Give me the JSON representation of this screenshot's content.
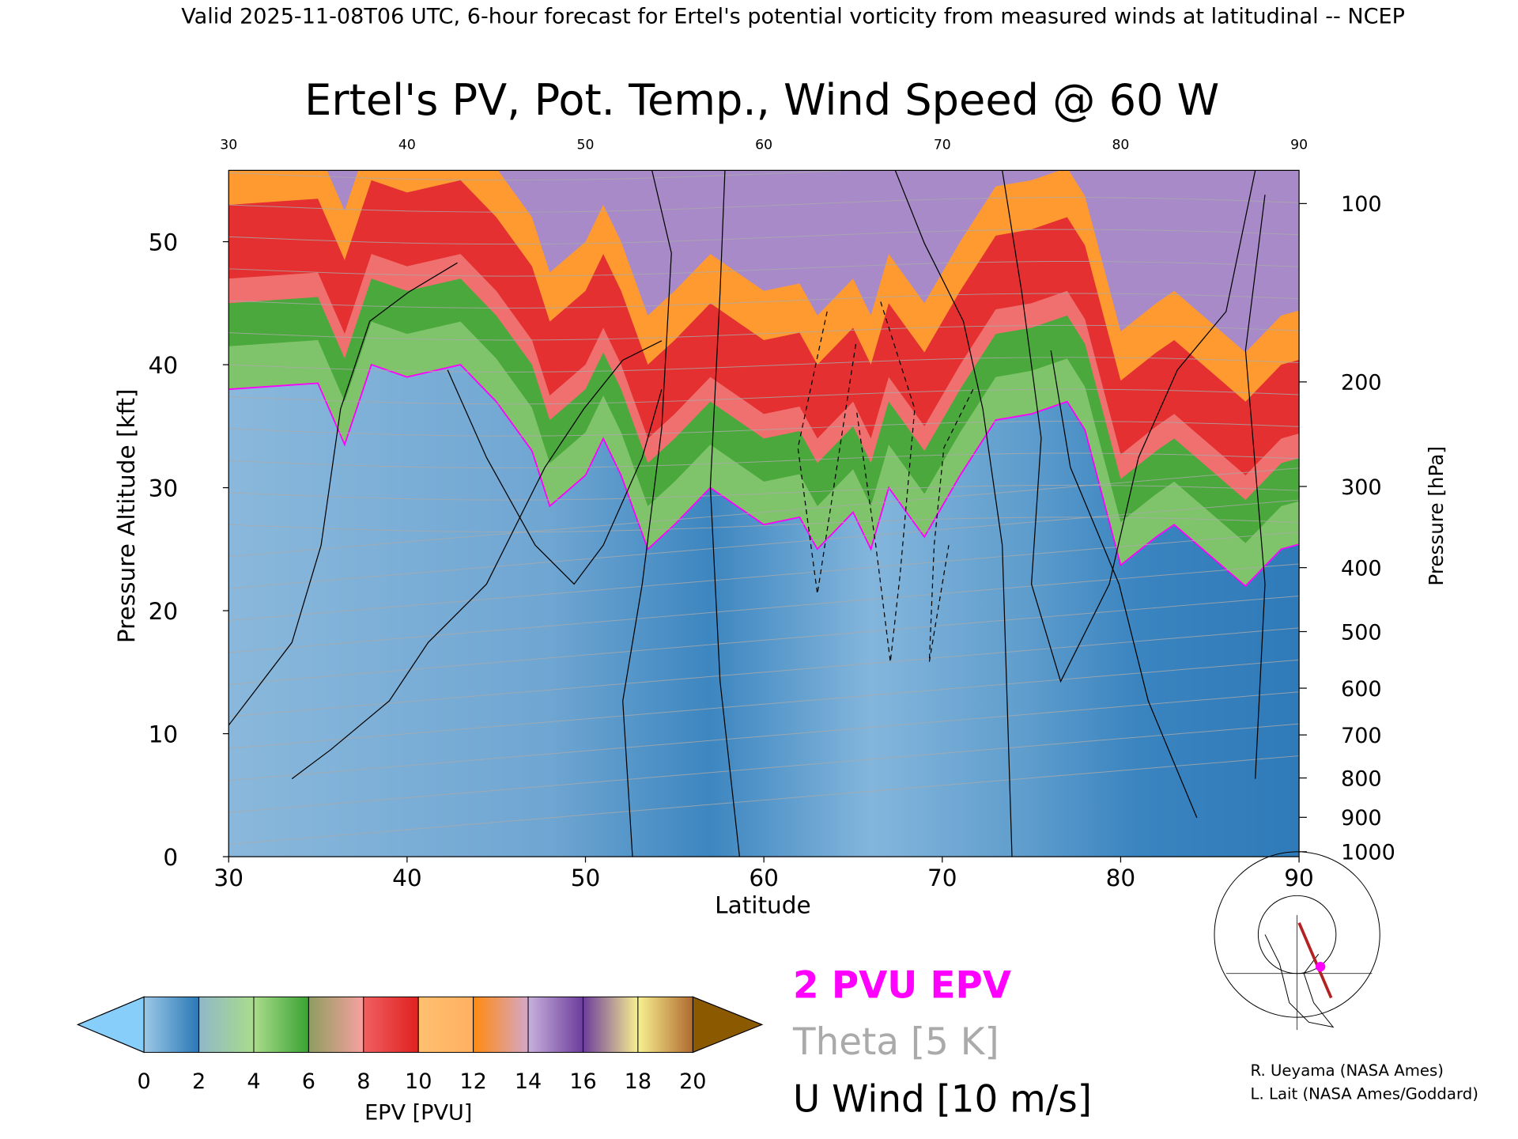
{
  "header": "Valid 2025-11-08T06 UTC, 6-hour forecast for Ertel's potential vorticity from measured winds at latitudinal -- NCEP",
  "chart_data": {
    "type": "heatmap",
    "title": "Ertel's PV, Pot. Temp., Wind Speed @ 60 W",
    "xlabel": "Latitude",
    "ylabel": "Pressure Altitude [kft]",
    "y2label": "Pressure [hPa]",
    "xlim": [
      30,
      90
    ],
    "ylim": [
      0,
      55.8
    ],
    "x_ticks": [
      "30",
      "40",
      "50",
      "60",
      "70",
      "80",
      "90"
    ],
    "x_tick_values": [
      30,
      40,
      50,
      60,
      70,
      80,
      90
    ],
    "y_ticks": [
      "0",
      "10",
      "20",
      "30",
      "40",
      "50"
    ],
    "y_tick_values": [
      0,
      10,
      20,
      30,
      40,
      50
    ],
    "pressure_ticks": [
      {
        "label": "100",
        "kft": 53.1
      },
      {
        "label": "200",
        "kft": 38.6
      },
      {
        "label": "300",
        "kft": 30.1
      },
      {
        "label": "400",
        "kft": 23.5
      },
      {
        "label": "500",
        "kft": 18.3
      },
      {
        "label": "600",
        "kft": 13.7
      },
      {
        "label": "700",
        "kft": 9.9
      },
      {
        "label": "800",
        "kft": 6.4
      },
      {
        "label": "900",
        "kft": 3.2
      },
      {
        "label": "1000",
        "kft": 0.4
      }
    ],
    "tropopause_2pvu": {
      "lat": [
        30,
        35,
        36.5,
        38,
        40,
        43,
        45,
        47,
        48,
        50,
        51,
        52,
        53.5,
        55,
        57,
        60,
        62,
        63,
        65,
        66,
        67,
        69,
        71,
        73,
        75,
        77,
        78,
        80,
        82,
        83,
        85,
        87,
        89,
        90
      ],
      "kft": [
        38,
        38.5,
        33.5,
        40,
        39,
        40,
        37,
        33,
        28.5,
        31,
        34,
        31,
        25,
        27,
        30,
        27,
        27.6,
        25,
        28,
        25,
        30,
        26,
        31,
        35.5,
        36,
        37,
        34.7,
        23.7,
        26,
        27,
        24.5,
        22,
        25,
        25.4
      ]
    },
    "colorbar": {
      "label": "EPV [PVU]",
      "ticks": [
        "0",
        "2",
        "4",
        "6",
        "8",
        "10",
        "12",
        "14",
        "16",
        "18",
        "20"
      ],
      "under_color": "#87cefa",
      "over_color": "#8b5a00",
      "segments": [
        [
          "#9cc8e6",
          "#2a78b6"
        ],
        [
          "#8fb8c8",
          "#aadc8c"
        ],
        [
          "#aadc8c",
          "#3aa232"
        ],
        [
          "#8e9e60",
          "#f8a0a0"
        ],
        [
          "#f06060",
          "#e02020"
        ],
        [
          "#ffc070",
          "#ffb060"
        ],
        [
          "#ff8a10",
          "#d4a8c8"
        ],
        [
          "#c8b0dc",
          "#6c3c9c"
        ],
        [
          "#6c3c9c",
          "#f8f090"
        ],
        [
          "#f8f090",
          "#b06a30"
        ]
      ]
    },
    "legend": {
      "pv_label": "2 PVU EPV",
      "pv_color": "#ff00ff",
      "theta_label": "Theta [5 K]",
      "theta_color": "#aaaaaa",
      "wind_label": "U Wind [10 m/s]"
    }
  },
  "credits": [
    "R. Ueyama (NASA Ames)",
    "L. Lait (NASA Ames/Goddard)"
  ]
}
